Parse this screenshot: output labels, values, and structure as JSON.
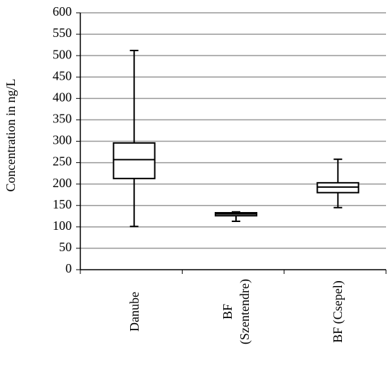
{
  "chart_data": {
    "type": "box",
    "y_label": "Concentration in ng/L",
    "categories": [
      "Danube",
      "BF (Szentendre)",
      "BF (Csepel)"
    ],
    "min": [
      101,
      113,
      145
    ],
    "q1": [
      213,
      126,
      180
    ],
    "median": [
      257,
      130,
      193
    ],
    "q3": [
      296,
      133,
      203
    ],
    "max": [
      512,
      135,
      258
    ],
    "color": "#000000",
    "grid_color": "#999999",
    "ylim": [
      0,
      600
    ],
    "yticks": [
      0,
      50,
      100,
      150,
      200,
      250,
      300,
      350,
      400,
      450,
      500,
      550,
      600
    ],
    "grid": true
  }
}
